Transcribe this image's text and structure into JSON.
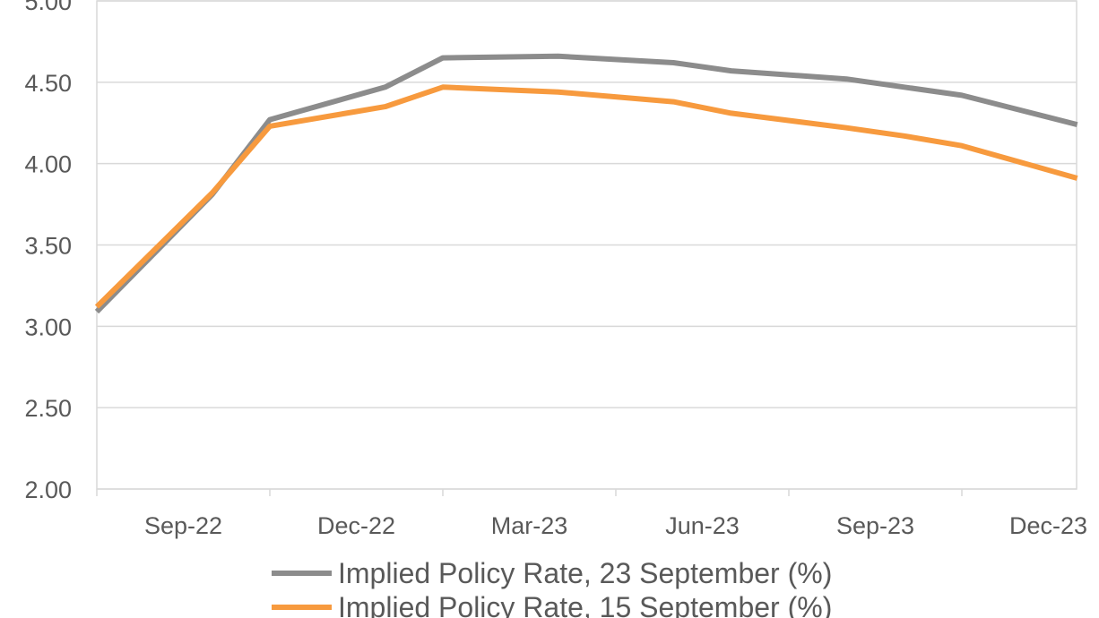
{
  "chart_data": {
    "type": "line",
    "title": "",
    "xlabel": "",
    "ylabel": "",
    "ylim": [
      2.0,
      5.0
    ],
    "y_ticks": [
      "2.00",
      "2.50",
      "3.00",
      "3.50",
      "4.00",
      "4.50",
      "5.00"
    ],
    "x_ticks": [
      "Sep-22",
      "Dec-22",
      "Mar-23",
      "Jun-23",
      "Sep-23",
      "Dec-23"
    ],
    "grid": true,
    "legend_position": "bottom",
    "x": [
      "Sep-22",
      "Nov-22",
      "Dec-22",
      "Feb-23",
      "Mar-23",
      "May-23",
      "Jul-23",
      "Aug-23",
      "Oct-23",
      "Nov-23",
      "Dec-23",
      "Feb-24"
    ],
    "series": [
      {
        "name": "Implied Policy Rate, 23 September (%)",
        "color": "#8c8c8c",
        "values": [
          3.09,
          3.81,
          4.27,
          4.47,
          4.65,
          4.66,
          4.62,
          4.57,
          4.52,
          4.47,
          4.42,
          4.24
        ]
      },
      {
        "name": "Implied Policy Rate, 15 September (%)",
        "color": "#f79a3e",
        "values": [
          3.12,
          3.82,
          4.23,
          4.35,
          4.47,
          4.44,
          4.38,
          4.31,
          4.22,
          4.17,
          4.11,
          3.91
        ]
      }
    ]
  }
}
